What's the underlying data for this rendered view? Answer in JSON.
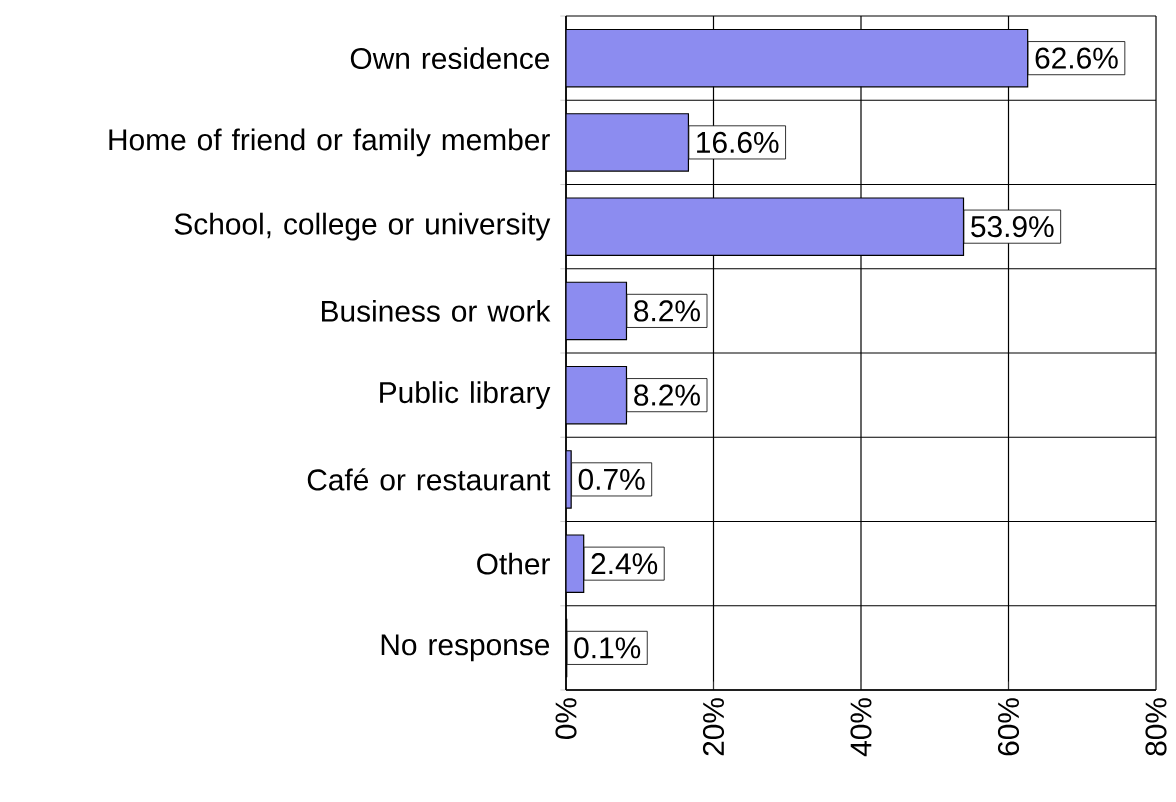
{
  "chart_data": {
    "type": "bar",
    "orientation": "horizontal",
    "categories": [
      "Own residence",
      "Home of friend or family member",
      "School, college or university",
      "Business or work",
      "Public library",
      "Café or restaurant",
      "Other",
      "No response"
    ],
    "values": [
      62.6,
      16.6,
      53.9,
      8.2,
      8.2,
      0.7,
      2.4,
      0.1
    ],
    "value_labels": [
      "62.6%",
      "16.6%",
      "53.9%",
      "8.2%",
      "8.2%",
      "0.7%",
      "2.4%",
      "0.1%"
    ],
    "color": "#8c8cf0",
    "xlim": [
      0,
      80
    ],
    "xticks": [
      {
        "value": 0,
        "label": "0%"
      },
      {
        "value": 20,
        "label": "20%"
      },
      {
        "value": 40,
        "label": "40%"
      },
      {
        "value": 60,
        "label": "60%"
      },
      {
        "value": 80,
        "label": "80%"
      }
    ],
    "grid": true
  }
}
